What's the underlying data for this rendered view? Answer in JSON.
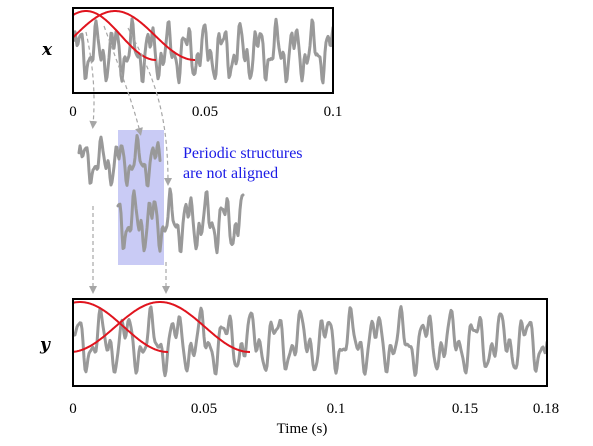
{
  "colors": {
    "signal": "#999999",
    "window": "#e0141e",
    "highlight": "#c9cbf5",
    "note": "#1a1ae6",
    "arrow": "#a6a6a6",
    "frame": "#000000"
  },
  "top_panel": {
    "label": "x",
    "ticks": [
      "0",
      "0.05",
      "0.1"
    ]
  },
  "bottom_panel": {
    "label": "y",
    "ticks": [
      "0",
      "0.05",
      "0.1",
      "0.15",
      "0.18"
    ],
    "xlabel": "Time (s)"
  },
  "note": {
    "line1": "Periodic structures",
    "line2": "are not aligned"
  }
}
